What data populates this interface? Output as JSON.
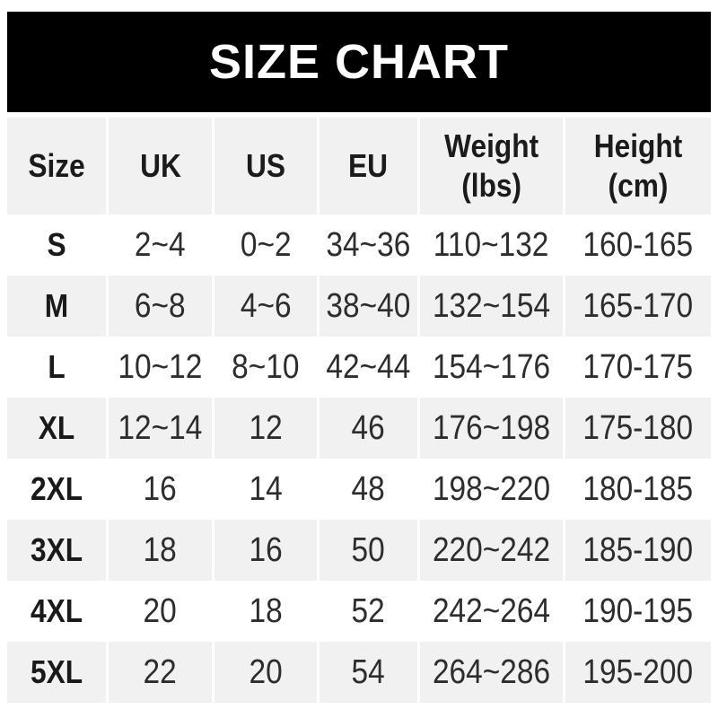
{
  "colors": {
    "banner_bg": "#000000",
    "banner_text": "#ffffff",
    "shaded_row_bg": "#f1f1f1",
    "header_text": "#1b1b1b",
    "data_text": "#2d2d2d"
  },
  "chart_data": {
    "type": "table",
    "title": "SIZE CHART",
    "columns": [
      {
        "label": "Size",
        "sub": ""
      },
      {
        "label": "UK",
        "sub": ""
      },
      {
        "label": "US",
        "sub": ""
      },
      {
        "label": "EU",
        "sub": ""
      },
      {
        "label": "Weight",
        "sub": "(lbs)"
      },
      {
        "label": "Height",
        "sub": "(cm)"
      }
    ],
    "rows": [
      [
        "S",
        "2~4",
        "0~2",
        "34~36",
        "110~132",
        "160-165"
      ],
      [
        "M",
        "6~8",
        "4~6",
        "38~40",
        "132~154",
        "165-170"
      ],
      [
        "L",
        "10~12",
        "8~10",
        "42~44",
        "154~176",
        "170-175"
      ],
      [
        "XL",
        "12~14",
        "12",
        "46",
        "176~198",
        "175-180"
      ],
      [
        "2XL",
        "16",
        "14",
        "48",
        "198~220",
        "180-185"
      ],
      [
        "3XL",
        "18",
        "16",
        "50",
        "220~242",
        "185-190"
      ],
      [
        "4XL",
        "20",
        "18",
        "52",
        "242~264",
        "190-195"
      ],
      [
        "5XL",
        "22",
        "20",
        "54",
        "264~286",
        "195-200"
      ]
    ]
  }
}
